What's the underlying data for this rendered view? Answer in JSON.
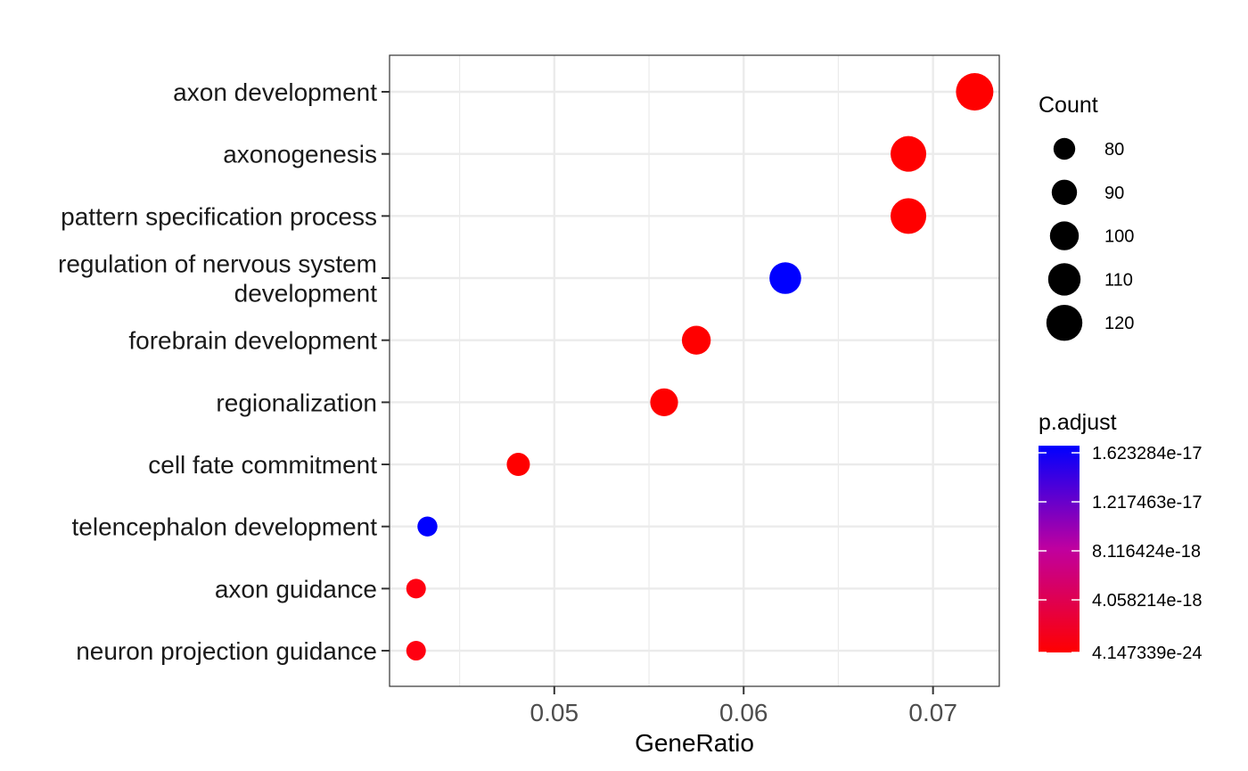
{
  "chart_data": {
    "type": "scatter",
    "title": "",
    "xlabel": "GeneRatio",
    "ylabel": "",
    "xlim": [
      0.0413,
      0.0735
    ],
    "x_ticks": [
      0.05,
      0.06,
      0.07
    ],
    "x_tick_labels": [
      "0.05",
      "0.06",
      "0.07"
    ],
    "grid": true,
    "categories": [
      "axon development",
      "axonogenesis",
      "pattern specification process",
      "regulation of nervous system development",
      "forebrain development",
      "regionalization",
      "cell fate commitment",
      "telencephalon development",
      "axon guidance",
      "neuron projection guidance"
    ],
    "category_label_lines": [
      [
        "axon development"
      ],
      [
        "axonogenesis"
      ],
      [
        "pattern specification process"
      ],
      [
        "regulation of nervous system",
        "development"
      ],
      [
        "forebrain development"
      ],
      [
        "regionalization"
      ],
      [
        "cell fate commitment"
      ],
      [
        "telencephalon development"
      ],
      [
        "axon guidance"
      ],
      [
        "neuron projection guidance"
      ]
    ],
    "points": [
      {
        "category": "axon development",
        "x": 0.0722,
        "count": 124,
        "color": "#ff0000"
      },
      {
        "category": "axonogenesis",
        "x": 0.0687,
        "count": 119,
        "color": "#ff0000"
      },
      {
        "category": "pattern specification process",
        "x": 0.0687,
        "count": 119,
        "color": "#ff0000"
      },
      {
        "category": "regulation of nervous system development",
        "x": 0.0622,
        "count": 108,
        "color": "#0000ff"
      },
      {
        "category": "forebrain development",
        "x": 0.0575,
        "count": 100,
        "color": "#ff0000"
      },
      {
        "category": "regionalization",
        "x": 0.0558,
        "count": 97,
        "color": "#ff0000"
      },
      {
        "category": "cell fate commitment",
        "x": 0.0481,
        "count": 84,
        "color": "#ff0000"
      },
      {
        "category": "telencephalon development",
        "x": 0.0433,
        "count": 75,
        "color": "#0000ff"
      },
      {
        "category": "axon guidance",
        "x": 0.0427,
        "count": 74,
        "color": "#ff0011"
      },
      {
        "category": "neuron projection guidance",
        "x": 0.0427,
        "count": 74,
        "color": "#ff0011"
      }
    ],
    "size_legend": {
      "title": "Count",
      "values": [
        80,
        90,
        100,
        110,
        120
      ],
      "labels": [
        "80",
        "90",
        "100",
        "110",
        "120"
      ]
    },
    "color_legend": {
      "title": "p.adjust",
      "labels": [
        "1.623284e-17",
        "1.217463e-17",
        "8.116424e-18",
        "4.058214e-18",
        "4.147339e-24"
      ],
      "low_color": "#ff0000",
      "high_color": "#0000ff"
    },
    "legend_position": "right"
  }
}
